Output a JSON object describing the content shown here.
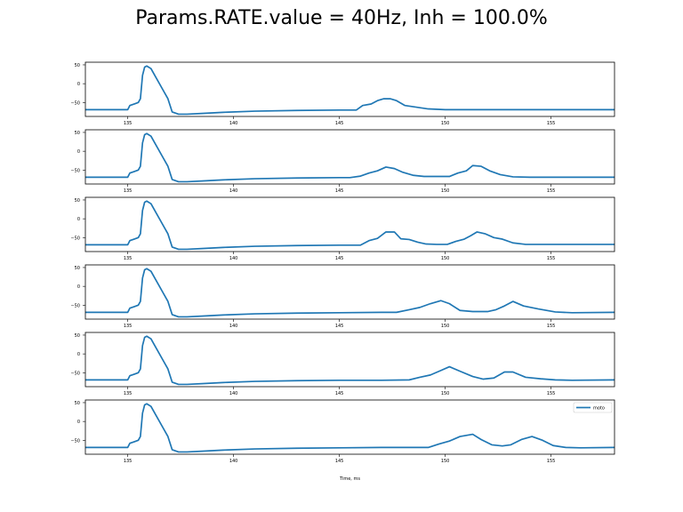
{
  "figure": {
    "title": "Params.RATE.value = 40Hz, Inh = 100.0%"
  },
  "chart_data": [
    {
      "type": "line",
      "title": "",
      "xlim": [
        133,
        158
      ],
      "ylim": [
        -87,
        57
      ],
      "x_ticks": [
        135,
        140,
        145,
        150,
        155
      ],
      "x_tick_labels": [
        "135",
        "140",
        "145",
        "150",
        "155"
      ],
      "y_ticks": [
        50,
        0,
        -50
      ],
      "y_tick_labels": [
        "50",
        "0",
        "−50"
      ],
      "xlabel": "",
      "series": [
        {
          "color": "#1f77b4",
          "x": [
            133,
            134,
            135,
            135.1,
            135.3,
            135.5,
            135.6,
            135.7,
            135.8,
            135.9,
            136.1,
            136.3,
            136.6,
            136.9,
            137.1,
            137.4,
            137.8,
            138.5,
            139.5,
            141,
            143,
            145,
            145.5,
            145.8,
            146.1,
            146.5,
            146.8,
            147.1,
            147.4,
            147.7,
            148.1,
            148.6,
            149.2,
            150,
            151,
            153,
            155,
            158
          ],
          "y": [
            -69,
            -69,
            -69,
            -58,
            -54,
            -50,
            -40,
            22,
            44,
            47,
            40,
            20,
            -10,
            -40,
            -75,
            -81,
            -81,
            -79,
            -76,
            -73,
            -71,
            -70,
            -70,
            -70,
            -58,
            -54,
            -45,
            -40,
            -40,
            -45,
            -58,
            -62,
            -67,
            -69,
            -69,
            -69,
            -69,
            -69
          ]
        }
      ]
    },
    {
      "type": "line",
      "title": "",
      "xlim": [
        133,
        158
      ],
      "ylim": [
        -87,
        57
      ],
      "x_ticks": [
        135,
        140,
        145,
        150,
        155
      ],
      "x_tick_labels": [
        "135",
        "140",
        "145",
        "150",
        "155"
      ],
      "y_ticks": [
        50,
        0,
        -50
      ],
      "y_tick_labels": [
        "50",
        "0",
        "−50"
      ],
      "xlabel": "",
      "series": [
        {
          "color": "#1f77b4",
          "x": [
            133,
            134,
            135,
            135.1,
            135.3,
            135.5,
            135.6,
            135.7,
            135.8,
            135.9,
            136.1,
            136.3,
            136.6,
            136.9,
            137.1,
            137.4,
            137.8,
            138.5,
            139.5,
            141,
            143,
            145,
            145.5,
            146,
            146.4,
            146.8,
            147.2,
            147.6,
            148,
            148.5,
            149,
            149.4,
            149.8,
            150.2,
            150.6,
            151,
            151.3,
            151.7,
            152.1,
            152.6,
            153.2,
            154,
            156,
            158
          ],
          "y": [
            -69,
            -69,
            -69,
            -58,
            -54,
            -50,
            -40,
            22,
            44,
            47,
            40,
            20,
            -10,
            -40,
            -75,
            -81,
            -81,
            -79,
            -76,
            -73,
            -71,
            -70,
            -70,
            -66,
            -58,
            -52,
            -42,
            -46,
            -56,
            -64,
            -67,
            -67,
            -67,
            -67,
            -58,
            -52,
            -38,
            -40,
            -52,
            -62,
            -68,
            -69,
            -69,
            -69
          ]
        }
      ]
    },
    {
      "type": "line",
      "title": "",
      "xlim": [
        133,
        158
      ],
      "ylim": [
        -87,
        57
      ],
      "x_ticks": [
        135,
        140,
        145,
        150,
        155
      ],
      "x_tick_labels": [
        "135",
        "140",
        "145",
        "150",
        "155"
      ],
      "y_ticks": [
        50,
        0,
        -50
      ],
      "y_tick_labels": [
        "50",
        "0",
        "−50"
      ],
      "xlabel": "",
      "series": [
        {
          "color": "#1f77b4",
          "x": [
            133,
            134,
            135,
            135.1,
            135.3,
            135.5,
            135.6,
            135.7,
            135.8,
            135.9,
            136.1,
            136.3,
            136.6,
            136.9,
            137.1,
            137.4,
            137.8,
            138.5,
            139.5,
            141,
            143,
            145,
            146,
            146.4,
            146.8,
            147.2,
            147.6,
            147.9,
            148.3,
            148.7,
            149.1,
            149.6,
            150.1,
            150.5,
            150.9,
            151.2,
            151.5,
            151.9,
            152.3,
            152.7,
            153.2,
            153.8,
            155,
            158
          ],
          "y": [
            -69,
            -69,
            -69,
            -58,
            -54,
            -50,
            -40,
            22,
            44,
            47,
            40,
            20,
            -10,
            -40,
            -75,
            -81,
            -81,
            -79,
            -76,
            -73,
            -71,
            -70,
            -70,
            -58,
            -52,
            -35,
            -35,
            -53,
            -55,
            -62,
            -67,
            -68,
            -68,
            -60,
            -54,
            -45,
            -35,
            -40,
            -50,
            -54,
            -64,
            -68,
            -68,
            -68
          ]
        }
      ]
    },
    {
      "type": "line",
      "title": "",
      "xlim": [
        133,
        158
      ],
      "ylim": [
        -87,
        57
      ],
      "x_ticks": [
        135,
        140,
        145,
        150,
        155
      ],
      "x_tick_labels": [
        "135",
        "140",
        "145",
        "150",
        "155"
      ],
      "y_ticks": [
        50,
        0,
        -50
      ],
      "y_tick_labels": [
        "50",
        "0",
        "−50"
      ],
      "xlabel": "",
      "series": [
        {
          "color": "#1f77b4",
          "x": [
            133,
            134,
            135,
            135.1,
            135.3,
            135.5,
            135.6,
            135.7,
            135.8,
            135.9,
            136.1,
            136.3,
            136.6,
            136.9,
            137.1,
            137.4,
            137.8,
            138.5,
            139.5,
            141,
            143,
            145,
            147,
            147.7,
            148.3,
            148.8,
            149.3,
            149.8,
            150.2,
            150.7,
            151.3,
            152,
            152.4,
            152.8,
            153.2,
            153.7,
            154.4,
            155.2,
            156,
            158
          ],
          "y": [
            -69,
            -69,
            -69,
            -58,
            -54,
            -50,
            -40,
            22,
            44,
            47,
            40,
            20,
            -10,
            -40,
            -75,
            -81,
            -81,
            -79,
            -76,
            -73,
            -71,
            -70,
            -69,
            -69,
            -62,
            -56,
            -46,
            -38,
            -46,
            -64,
            -67,
            -67,
            -62,
            -52,
            -40,
            -52,
            -60,
            -68,
            -70,
            -69
          ]
        }
      ]
    },
    {
      "type": "line",
      "title": "",
      "xlim": [
        133,
        158
      ],
      "ylim": [
        -87,
        57
      ],
      "x_ticks": [
        135,
        140,
        145,
        150,
        155
      ],
      "x_tick_labels": [
        "135",
        "140",
        "145",
        "150",
        "155"
      ],
      "y_ticks": [
        50,
        0,
        -50
      ],
      "y_tick_labels": [
        "50",
        "0",
        "−50"
      ],
      "xlabel": "",
      "series": [
        {
          "color": "#1f77b4",
          "x": [
            133,
            134,
            135,
            135.1,
            135.3,
            135.5,
            135.6,
            135.7,
            135.8,
            135.9,
            136.1,
            136.3,
            136.6,
            136.9,
            137.1,
            137.4,
            137.8,
            138.5,
            139.5,
            141,
            143,
            145,
            147,
            148.3,
            148.8,
            149.3,
            149.8,
            150.2,
            150.7,
            151.3,
            151.8,
            152.3,
            152.8,
            153.2,
            153.8,
            154.5,
            155.2,
            156,
            158
          ],
          "y": [
            -69,
            -69,
            -69,
            -58,
            -54,
            -50,
            -40,
            22,
            44,
            47,
            40,
            20,
            -10,
            -40,
            -75,
            -81,
            -81,
            -79,
            -76,
            -73,
            -71,
            -70,
            -70,
            -69,
            -62,
            -56,
            -44,
            -34,
            -46,
            -60,
            -67,
            -64,
            -48,
            -48,
            -62,
            -66,
            -69,
            -70,
            -69
          ]
        }
      ]
    },
    {
      "type": "line",
      "title": "",
      "xlim": [
        133,
        158
      ],
      "ylim": [
        -87,
        57
      ],
      "x_ticks": [
        135,
        140,
        145,
        150,
        155
      ],
      "x_tick_labels": [
        "135",
        "140",
        "145",
        "150",
        "155"
      ],
      "y_ticks": [
        50,
        0,
        -50
      ],
      "y_tick_labels": [
        "50",
        "0",
        "−50"
      ],
      "xlabel": "Time, ms",
      "legend": {
        "location": "top-right",
        "entries": [
          "moto"
        ]
      },
      "series": [
        {
          "name": "moto",
          "color": "#1f77b4",
          "x": [
            133,
            134,
            135,
            135.1,
            135.3,
            135.5,
            135.6,
            135.7,
            135.8,
            135.9,
            136.1,
            136.3,
            136.6,
            136.9,
            137.1,
            137.4,
            137.8,
            138.5,
            139.5,
            141,
            143,
            145,
            147,
            149.2,
            149.7,
            150.2,
            150.7,
            151.3,
            151.7,
            152.2,
            152.7,
            153.1,
            153.6,
            154.1,
            154.6,
            155.1,
            155.7,
            156.4,
            158
          ],
          "y": [
            -69,
            -69,
            -69,
            -58,
            -54,
            -50,
            -40,
            22,
            44,
            47,
            40,
            20,
            -10,
            -40,
            -75,
            -81,
            -81,
            -79,
            -76,
            -73,
            -71,
            -70,
            -69,
            -69,
            -60,
            -52,
            -40,
            -34,
            -48,
            -62,
            -65,
            -62,
            -48,
            -40,
            -50,
            -64,
            -69,
            -70,
            -69
          ]
        }
      ]
    }
  ]
}
